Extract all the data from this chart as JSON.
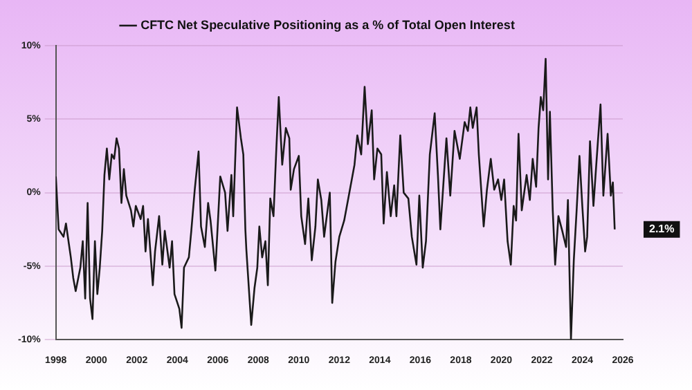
{
  "chart_data": {
    "type": "line",
    "x": [
      1998.0,
      1998.14,
      1998.38,
      1998.5,
      1998.74,
      1998.86,
      1998.98,
      1999.21,
      1999.33,
      1999.45,
      1999.57,
      1999.69,
      1999.81,
      1999.93,
      2000.05,
      2000.17,
      2000.29,
      2000.4,
      2000.52,
      2000.64,
      2000.76,
      2000.88,
      2001.0,
      2001.12,
      2001.24,
      2001.36,
      2001.48,
      2001.71,
      2001.83,
      2001.95,
      2002.19,
      2002.31,
      2002.43,
      2002.55,
      2002.79,
      2002.9,
      2003.1,
      2003.26,
      2003.38,
      2003.62,
      2003.74,
      2003.86,
      2004.1,
      2004.21,
      2004.33,
      2004.57,
      2004.69,
      2004.86,
      2005.05,
      2005.17,
      2005.36,
      2005.52,
      2005.64,
      2005.88,
      2006.12,
      2006.36,
      2006.48,
      2006.67,
      2006.76,
      2006.95,
      2007.14,
      2007.26,
      2007.36,
      2007.41,
      2007.65,
      2007.81,
      2007.95,
      2008.05,
      2008.19,
      2008.35,
      2008.47,
      2008.59,
      2008.75,
      2008.89,
      2009.01,
      2009.18,
      2009.36,
      2009.53,
      2009.6,
      2009.76,
      2010.0,
      2010.12,
      2010.31,
      2010.47,
      2010.64,
      2010.82,
      2010.94,
      2011.11,
      2011.25,
      2011.53,
      2011.65,
      2011.81,
      2012.0,
      2012.24,
      2012.47,
      2012.75,
      2012.89,
      2013.08,
      2013.25,
      2013.41,
      2013.6,
      2013.72,
      2013.88,
      2014.07,
      2014.19,
      2014.35,
      2014.54,
      2014.71,
      2014.82,
      2015.01,
      2015.18,
      2015.41,
      2015.58,
      2015.81,
      2015.95,
      2016.12,
      2016.28,
      2016.47,
      2016.71,
      2016.87,
      2016.99,
      2017.29,
      2017.48,
      2017.69,
      2017.95,
      2018.19,
      2018.35,
      2018.47,
      2018.59,
      2018.78,
      2018.89,
      2019.13,
      2019.29,
      2019.48,
      2019.65,
      2019.84,
      2020.0,
      2020.14,
      2020.31,
      2020.47,
      2020.61,
      2020.73,
      2020.85,
      2021.01,
      2021.25,
      2021.41,
      2021.55,
      2021.72,
      2021.84,
      2021.95,
      2022.07,
      2022.19,
      2022.31,
      2022.4,
      2022.54,
      2022.66,
      2022.82,
      2023.01,
      2023.2,
      2023.29,
      2023.44,
      2023.58,
      2023.72,
      2023.86,
      2024.0,
      2024.14,
      2024.24,
      2024.38,
      2024.55,
      2024.71,
      2024.9,
      2025.04,
      2025.25,
      2025.41,
      2025.51,
      2025.6
    ],
    "series": [
      {
        "name": "CFTC Net Speculative Positioning as a % of Total Open Interest",
        "color": "#1a1a1a",
        "values": [
          1.1,
          -2.5,
          -3.0,
          -2.1,
          -4.4,
          -5.8,
          -6.7,
          -5.1,
          -3.3,
          -7.2,
          -0.7,
          -7.2,
          -8.6,
          -3.3,
          -6.9,
          -5.1,
          -2.6,
          1.2,
          3.0,
          0.9,
          2.6,
          2.3,
          3.7,
          3.0,
          -0.7,
          1.6,
          -0.2,
          -1.2,
          -2.3,
          -0.9,
          -1.8,
          -0.9,
          -4.0,
          -1.8,
          -6.3,
          -4.0,
          -1.6,
          -4.9,
          -2.6,
          -5.1,
          -3.3,
          -6.9,
          -7.9,
          -9.2,
          -5.1,
          -4.4,
          -2.6,
          0.2,
          2.8,
          -2.3,
          -3.7,
          -0.7,
          -1.9,
          -5.3,
          1.1,
          0.0,
          -2.6,
          1.2,
          -1.6,
          5.8,
          3.7,
          2.6,
          -2.5,
          -3.9,
          -9.0,
          -6.5,
          -5.1,
          -2.3,
          -4.4,
          -3.3,
          -6.3,
          -0.4,
          -1.6,
          3.0,
          6.5,
          1.9,
          4.4,
          3.7,
          0.2,
          1.6,
          2.5,
          -1.6,
          -3.5,
          -0.4,
          -4.6,
          -2.3,
          0.9,
          -0.5,
          -3.0,
          0.0,
          -7.5,
          -4.7,
          -3.0,
          -1.9,
          -0.2,
          1.9,
          3.9,
          2.6,
          7.2,
          3.3,
          5.6,
          0.9,
          3.0,
          2.6,
          -2.1,
          1.4,
          -1.6,
          0.5,
          -1.6,
          3.9,
          0.0,
          -0.4,
          -3.0,
          -4.9,
          -0.2,
          -5.1,
          -3.3,
          2.6,
          5.4,
          1.2,
          -2.5,
          3.7,
          -0.2,
          4.2,
          2.3,
          4.8,
          4.2,
          5.8,
          4.4,
          5.8,
          2.6,
          -2.3,
          0.2,
          2.3,
          0.2,
          0.9,
          -0.5,
          0.9,
          -3.3,
          -4.9,
          -0.9,
          -1.9,
          4.0,
          -1.2,
          1.2,
          -0.5,
          2.3,
          0.4,
          4.4,
          6.5,
          5.6,
          9.1,
          0.9,
          5.5,
          -1.2,
          -4.9,
          -1.6,
          -2.6,
          -3.7,
          -0.5,
          -10.0,
          -4.6,
          -1.2,
          2.5,
          -0.9,
          -4.0,
          -3.0,
          3.5,
          -0.9,
          2.3,
          6.0,
          -0.2,
          4.0,
          -0.2,
          0.7,
          -2.5
        ]
      }
    ],
    "xlim": [
      1998,
      2026
    ],
    "xticks": [
      1998,
      2000,
      2002,
      2004,
      2006,
      2008,
      2010,
      2012,
      2014,
      2016,
      2018,
      2020,
      2022,
      2024,
      2026
    ],
    "ylim": [
      -10,
      10
    ],
    "yticks": [
      {
        "value": -10,
        "label": "-10%"
      },
      {
        "value": -5,
        "label": "-5%"
      },
      {
        "value": 0,
        "label": "0%"
      },
      {
        "value": 5,
        "label": "5%"
      },
      {
        "value": 10,
        "label": "10%"
      }
    ],
    "annotations": [
      "2.1%"
    ],
    "grid": "y",
    "legend": "top",
    "marker": "none",
    "line_style": "solid"
  }
}
